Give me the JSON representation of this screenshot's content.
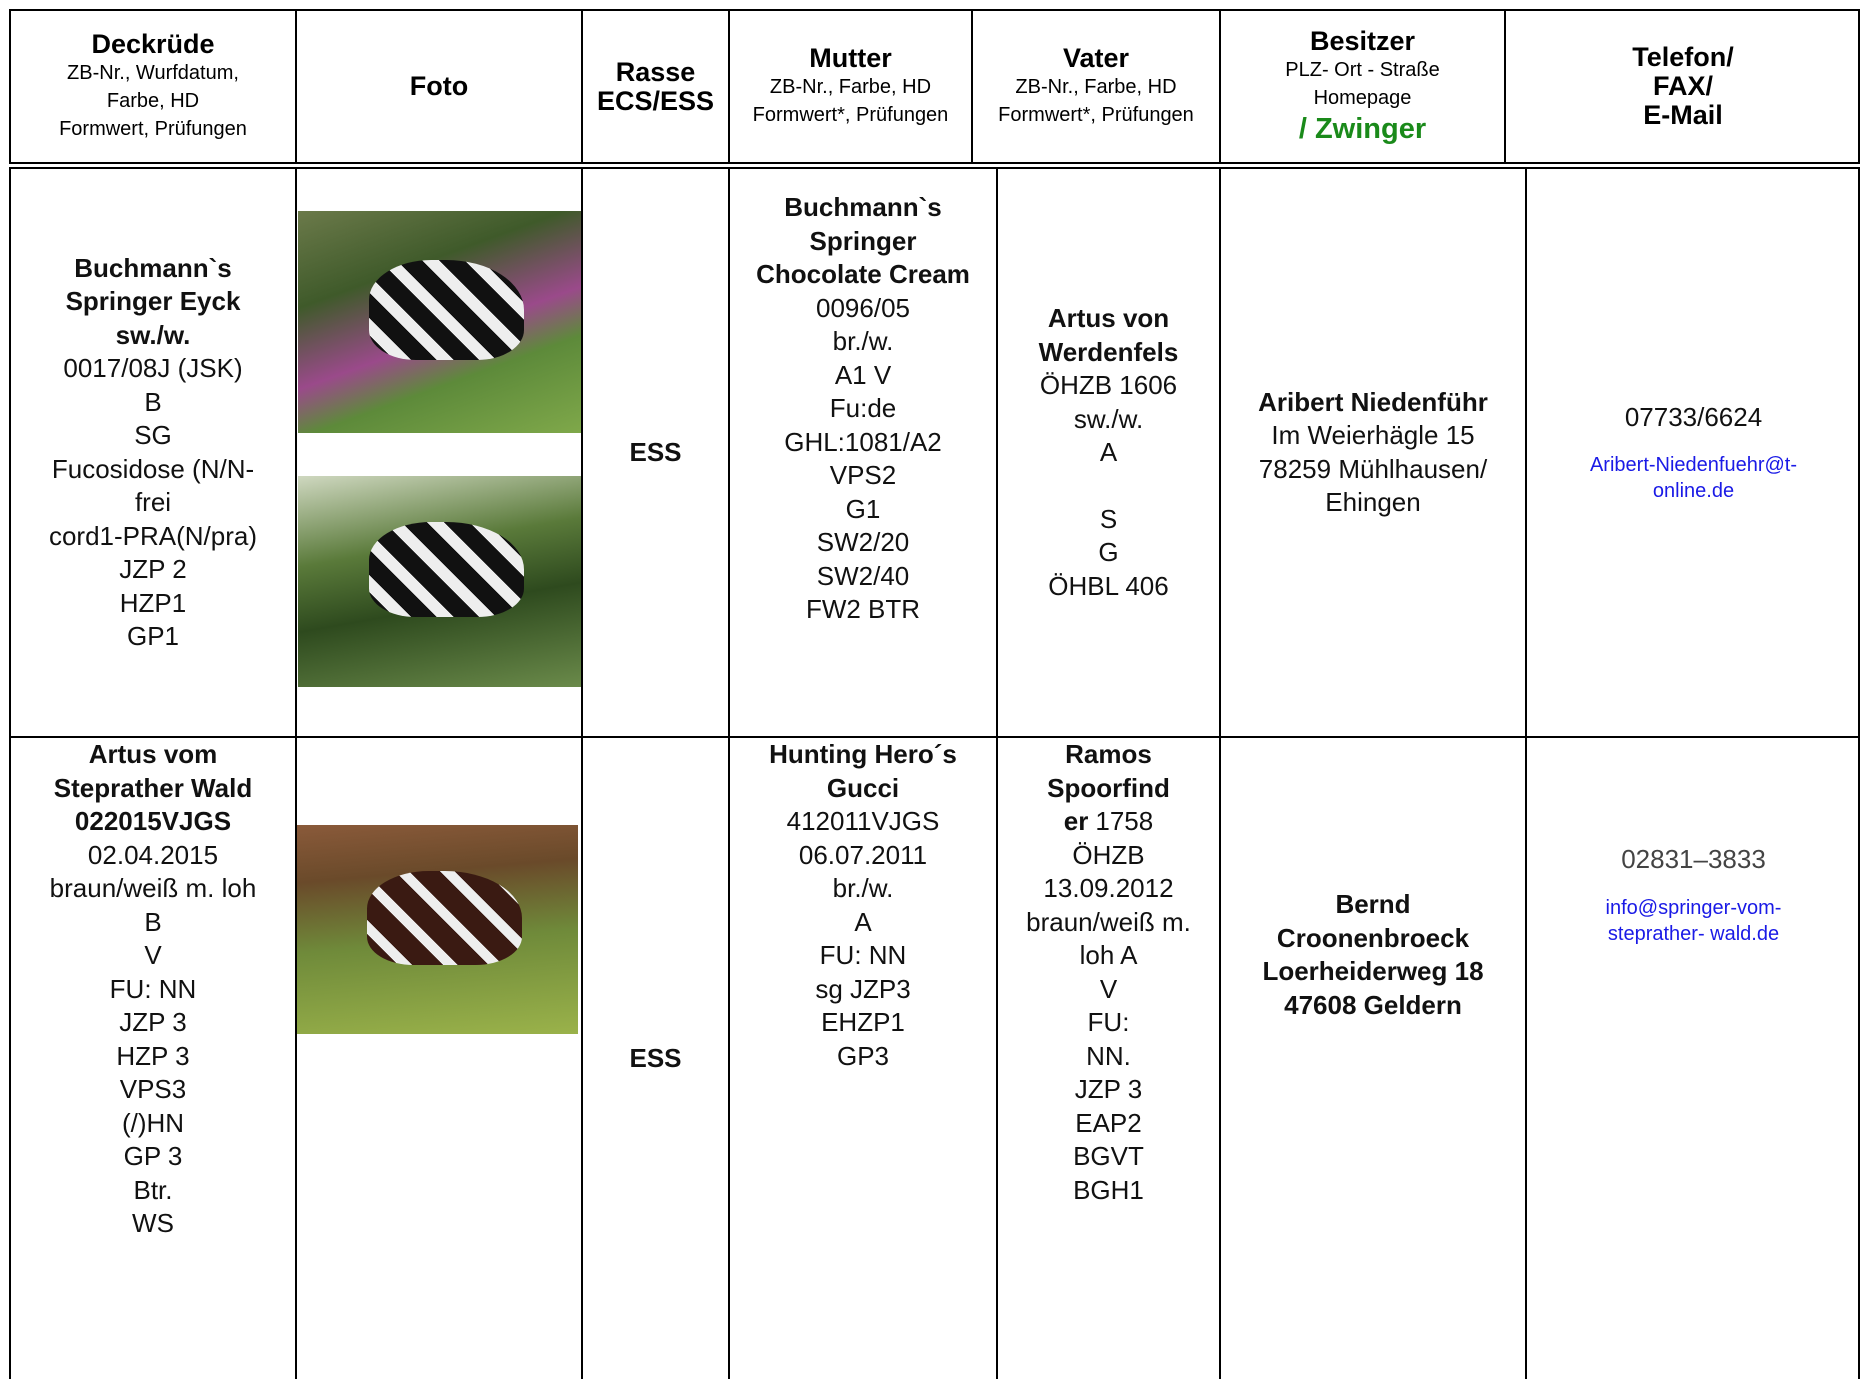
{
  "header": [
    {
      "title": [
        "Deckrüde"
      ],
      "sub": [
        "ZB-Nr., Wurfdatum,",
        "Farbe, HD",
        "Formwert, Prüfungen"
      ]
    },
    {
      "title": [
        "Foto"
      ]
    },
    {
      "title": [
        "Rasse",
        "ECS/ESS"
      ]
    },
    {
      "title": [
        "Mutter"
      ],
      "sub": [
        "ZB-Nr., Farbe, HD",
        "Formwert*, Prüfungen"
      ]
    },
    {
      "title": [
        "Vater"
      ],
      "sub": [
        "ZB-Nr., Farbe, HD",
        "Formwert*, Prüfungen"
      ]
    },
    {
      "title": [
        "Besitzer"
      ],
      "sub": [
        "PLZ- Ort - Straße",
        "Homepage"
      ],
      "link": "/ Zwinger"
    },
    {
      "title": [
        "Telefon/",
        "FAX/",
        "E-Mail"
      ]
    }
  ],
  "rows": [
    {
      "deckruede": {
        "bold": [
          "Buchmann`s",
          "Springer Eyck",
          "sw./w."
        ],
        "lines": [
          "0017/08J (JSK)",
          "B",
          "SG",
          "Fucosidose (N/N-",
          "frei",
          "cord1-PRA(N/pra)",
          "JZP 2",
          "HZP1",
          "GP1"
        ]
      },
      "rasse": {
        "bold": [
          "ESS"
        ]
      },
      "mutter": {
        "bold": [
          "Buchmann`s",
          "Springer",
          "Chocolate Cream"
        ],
        "lines": [
          "0096/05",
          "br./w.",
          "A1 V",
          "Fu:de",
          "GHL:1081/A2",
          "VPS2",
          "G1",
          "SW2/20",
          "SW2/40",
          "FW2 BTR"
        ]
      },
      "vater": {
        "bold": [
          "Artus von",
          "Werdenfels"
        ],
        "lines": [
          "ÖHZB 1606",
          "sw./w.",
          "A",
          "S",
          "G",
          "ÖHBL 406"
        ]
      },
      "besitzer": {
        "bold": [
          "Aribert Niedenführ"
        ],
        "lines": [
          "Im Weierhägle 15",
          "78259 Mühlhausen/",
          "Ehingen"
        ]
      },
      "telefon": {
        "lines": [
          "07733/6624"
        ],
        "email": [
          "Aribert-Niedenfuehr@t-",
          "online.de"
        ]
      }
    },
    {
      "deckruede": {
        "bold": [
          "Artus vom",
          "Steprather Wald",
          "022015VJGS"
        ],
        "lines": [
          "02.04.2015",
          "braun/weiß m. loh",
          "B",
          "V",
          "FU: NN",
          "JZP 3",
          "HZP 3",
          "VPS3",
          "(/)HN",
          "GP 3",
          "Btr.",
          "WS"
        ]
      },
      "rasse": {
        "bold": [
          "ESS"
        ]
      },
      "mutter": {
        "bold": [
          "Hunting Hero´s",
          "Gucci"
        ],
        "lines": [
          "412011VJGS",
          "06.07.2011",
          "br./w.",
          "A",
          "FU: NN",
          "sg JZP3",
          "EHZP1",
          "GP3"
        ]
      },
      "vater": {
        "bold": [
          "Ramos",
          "Spoorfind",
          "er"
        ],
        "lines": [
          "1758",
          "ÖHZB",
          "13.09.2012",
          "braun/weiß m.",
          "loh A",
          "V",
          "FU:",
          "NN.",
          "JZP 3",
          "EAP2",
          "BGVT",
          "BGH1"
        ]
      },
      "besitzer": {
        "bold": [
          "Bernd",
          "Croonenbroeck",
          "Loerheiderweg 18",
          "47608 Geldern"
        ]
      },
      "telefon": {
        "lines": [
          "02831–3833"
        ],
        "email": [
          "info@springer-vom-",
          "steprather- wald.de"
        ]
      }
    }
  ]
}
